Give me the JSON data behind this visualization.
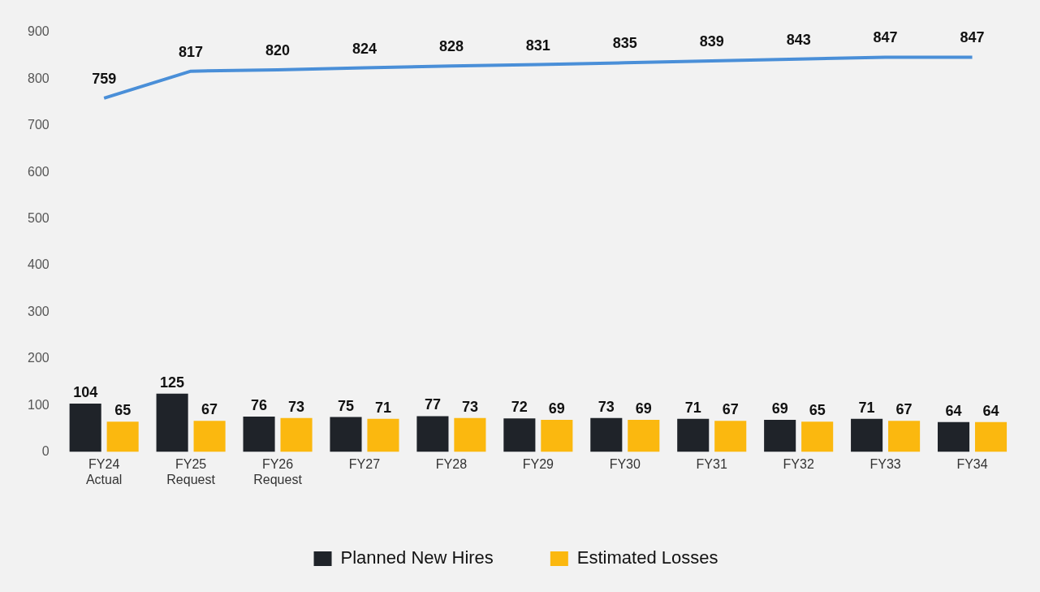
{
  "chart_data": {
    "type": "bar",
    "categories": [
      "FY24 Actual",
      "FY25 Request",
      "FY26 Request",
      "FY27",
      "FY28",
      "FY29",
      "FY30",
      "FY31",
      "FY32",
      "FY33",
      "FY34"
    ],
    "series": [
      {
        "type": "line",
        "color": "#4a8fd8",
        "values": [
          759,
          817,
          820,
          824,
          828,
          831,
          835,
          839,
          843,
          847,
          847
        ]
      },
      {
        "name": "Planned New Hires",
        "color": "#1f2329",
        "values": [
          104,
          125,
          76,
          75,
          77,
          72,
          73,
          71,
          69,
          71,
          64
        ]
      },
      {
        "name": "Estimated Losses",
        "color": "#fbb80f",
        "values": [
          65,
          67,
          73,
          71,
          73,
          69,
          69,
          67,
          65,
          67,
          64
        ]
      }
    ],
    "ylim": [
      0,
      900
    ],
    "yticks": [
      0,
      100,
      200,
      300,
      400,
      500,
      600,
      700,
      800,
      900
    ],
    "grid": false,
    "legend": "bottom",
    "data_labels": true,
    "marker": "none"
  }
}
